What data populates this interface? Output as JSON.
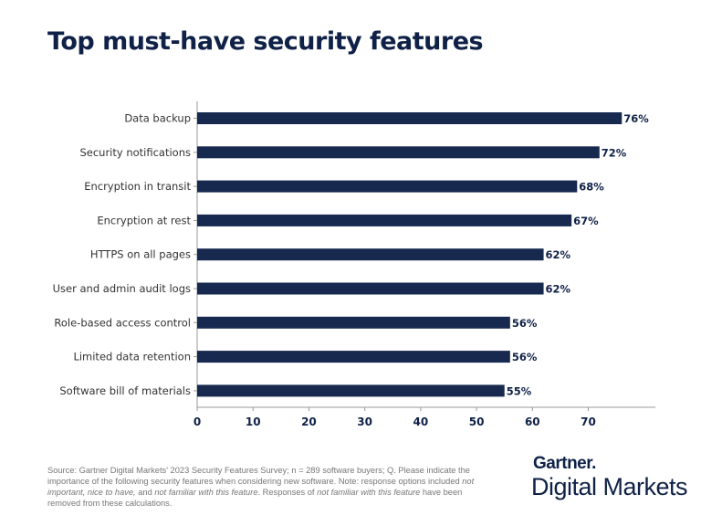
{
  "chart_data": {
    "type": "bar",
    "orientation": "horizontal",
    "title": "Top must-have security features",
    "categories": [
      "Data backup",
      "Security notifications",
      "Encryption in transit",
      "Encryption at rest",
      "HTTPS on all pages",
      "User and admin audit logs",
      "Role-based access control",
      "Limited data retention",
      "Software bill of materials"
    ],
    "values": [
      76,
      72,
      68,
      67,
      62,
      62,
      56,
      56,
      55
    ],
    "data_labels": [
      "76%",
      "72%",
      "68%",
      "67%",
      "62%",
      "62%",
      "56%",
      "56%",
      "55%"
    ],
    "xticks": [
      0,
      10,
      20,
      30,
      40,
      50,
      60,
      70
    ],
    "xlim": [
      0,
      82
    ],
    "xlabel": "",
    "ylabel": "",
    "grid": false,
    "bar_color": "#17294f"
  },
  "footnote": {
    "part1": "Source: Gartner Digital Markets' 2023 Security Features Survey; n = 289 software buyers; Q. Please indicate the importance of the following security features when considering new software. Note: response options included ",
    "italic1": "not important, nice to have,",
    "part2": " and ",
    "italic2": "not familiar with this feature",
    "part3": ". Responses of ",
    "italic3": "not familiar with this feature",
    "part4": " have been removed from these calculations."
  },
  "logo": {
    "line1": "Gartner.",
    "line2": "Digital Markets"
  }
}
